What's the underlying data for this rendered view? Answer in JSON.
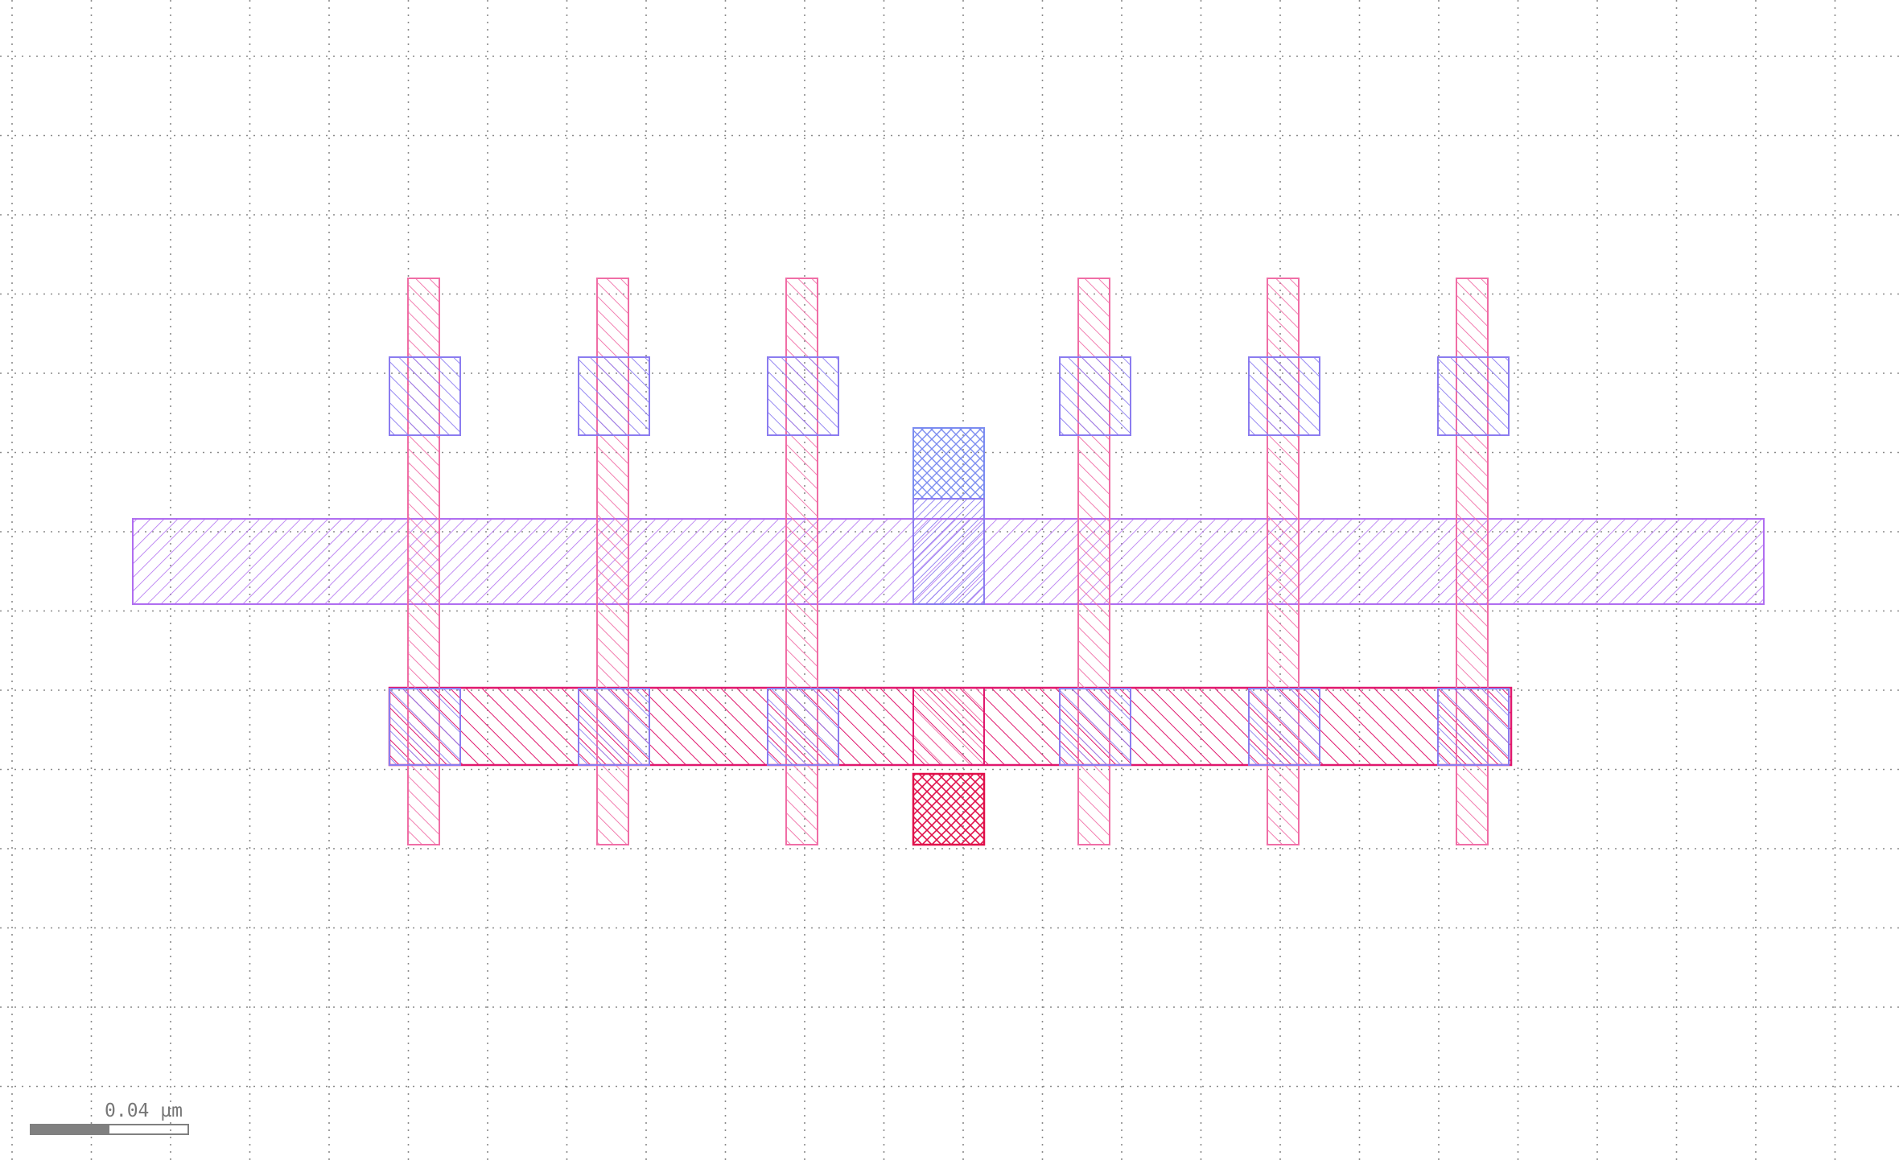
{
  "viewer": {
    "background": "#ffffff",
    "grid": {
      "visible": true,
      "style": "dotted",
      "color": "#8a8a8a"
    },
    "scale_bar": {
      "label": "0.04 µm",
      "fill_color": "#808080",
      "outline_color": "#808080"
    }
  },
  "layers": {
    "poly": {
      "color": "#f06ea6",
      "hatch": "diagonal"
    },
    "licon_top": {
      "color": "#8b7cf0",
      "hatch": "diagonal"
    },
    "li_rail": {
      "color": "#b06ef0",
      "hatch": "diagonal-back"
    },
    "via_top": {
      "color": "#7b8cf0",
      "hatch": "crosshatch"
    },
    "met_rail": {
      "color": "#e0186e",
      "hatch": "diagonal"
    },
    "via_bottom": {
      "color": "#e0104a",
      "hatch": "crosshatch"
    }
  },
  "fingers": [
    "finger-1",
    "finger-2",
    "finger-3",
    "finger-4",
    "finger-5",
    "finger-6"
  ]
}
